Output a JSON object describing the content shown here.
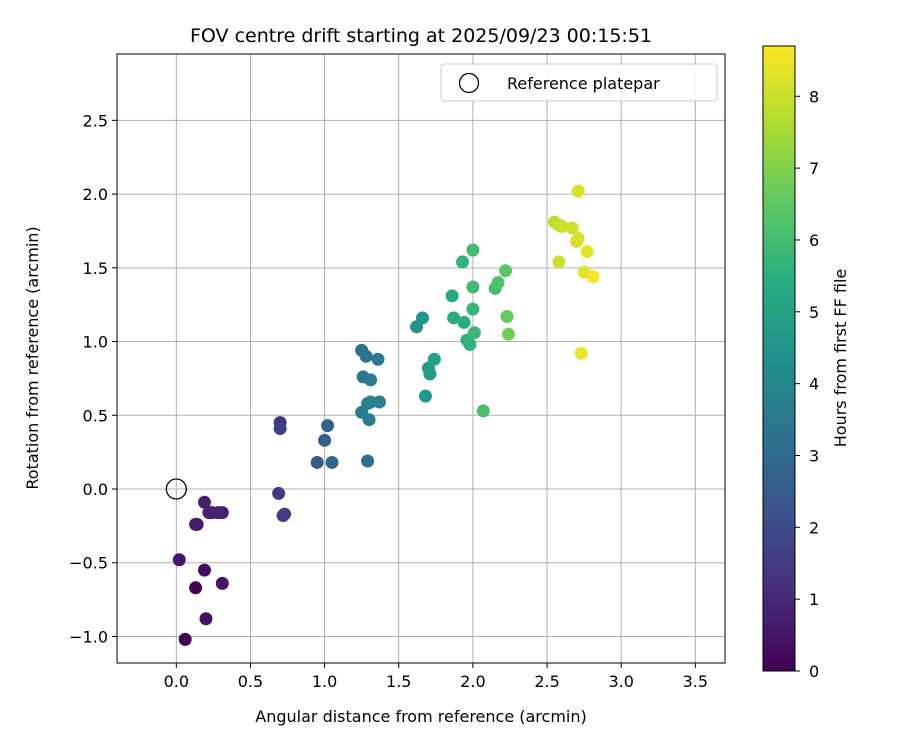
{
  "chart_data": {
    "type": "scatter",
    "title": "FOV centre drift starting at 2025/09/23 00:15:51",
    "xlabel": "Angular distance from reference (arcmin)",
    "ylabel": "Rotation from reference (arcmin)",
    "xlim": [
      -0.4,
      3.7
    ],
    "ylim": [
      -1.18,
      2.95
    ],
    "xticks": [
      0.0,
      0.5,
      1.0,
      1.5,
      2.0,
      2.5,
      3.0,
      3.5
    ],
    "xtick_labels": [
      "0.0",
      "0.5",
      "1.0",
      "1.5",
      "2.0",
      "2.5",
      "3.0",
      "3.5"
    ],
    "yticks": [
      -1.0,
      -0.5,
      0.0,
      0.5,
      1.0,
      1.5,
      2.0,
      2.5
    ],
    "ytick_labels": [
      "−1.0",
      "−0.5",
      "0.0",
      "0.5",
      "1.0",
      "1.5",
      "2.0",
      "2.5"
    ],
    "grid": true,
    "legend": {
      "placement": "upper-right",
      "entries": [
        "Reference platepar"
      ]
    },
    "reference_point": {
      "name": "Reference platepar",
      "x": 0.0,
      "y": 0.0
    },
    "colorbar": {
      "label": "Hours from first FF file",
      "colormap": "viridis",
      "range": [
        0,
        8.7
      ],
      "ticks": [
        0,
        1,
        2,
        3,
        4,
        5,
        6,
        7,
        8
      ],
      "tick_labels": [
        "0",
        "1",
        "2",
        "3",
        "4",
        "5",
        "6",
        "7",
        "8"
      ]
    },
    "series": [
      {
        "x": [
          0.06,
          0.13,
          0.14,
          0.19,
          0.2,
          0.31,
          0.02,
          0.24,
          0.31,
          0.13,
          0.19,
          0.22,
          0.28,
          0.7,
          0.72,
          0.69,
          0.73,
          0.7,
          0.95,
          1.0,
          1.02,
          1.05,
          1.29,
          1.25,
          1.28,
          1.36,
          1.26,
          1.31,
          1.25,
          1.3,
          1.29,
          1.37,
          1.31,
          1.62,
          1.66,
          1.68,
          1.7,
          1.71,
          1.74,
          1.86,
          1.87,
          1.94,
          1.96,
          1.98,
          2.0,
          2.01,
          2.0,
          2.07,
          1.93,
          2.0,
          2.15,
          2.17,
          2.22,
          2.23,
          2.24,
          2.55,
          2.58,
          2.6,
          2.58,
          2.67,
          2.7,
          2.71,
          2.71,
          2.75,
          2.77,
          2.73,
          2.81
        ],
        "y": [
          -1.02,
          -0.67,
          -0.24,
          -0.55,
          -0.88,
          -0.64,
          -0.48,
          -0.16,
          -0.16,
          -0.24,
          -0.09,
          -0.16,
          -0.16,
          0.45,
          -0.18,
          -0.03,
          -0.17,
          0.41,
          0.18,
          0.33,
          0.43,
          0.18,
          0.19,
          0.94,
          0.9,
          0.88,
          0.76,
          0.74,
          0.52,
          0.47,
          0.58,
          0.59,
          0.59,
          1.1,
          1.16,
          0.63,
          0.82,
          0.78,
          0.88,
          1.31,
          1.16,
          1.13,
          1.01,
          0.98,
          1.22,
          1.06,
          1.62,
          0.53,
          1.54,
          1.37,
          1.36,
          1.4,
          1.48,
          1.17,
          1.05,
          1.81,
          1.79,
          1.78,
          1.54,
          1.77,
          1.68,
          1.7,
          2.02,
          1.47,
          1.61,
          0.92,
          1.44
        ],
        "hours": [
          0.0,
          0.1,
          0.2,
          0.3,
          0.4,
          0.5,
          0.55,
          0.6,
          0.65,
          0.7,
          0.75,
          0.8,
          0.85,
          1.3,
          1.4,
          1.5,
          1.55,
          1.6,
          2.5,
          2.6,
          2.7,
          2.8,
          3.2,
          3.3,
          3.4,
          3.5,
          3.55,
          3.6,
          3.65,
          3.7,
          3.75,
          3.8,
          3.9,
          4.4,
          4.5,
          4.6,
          4.7,
          4.8,
          4.9,
          5.2,
          5.3,
          5.4,
          5.5,
          5.6,
          5.7,
          5.8,
          5.9,
          6.1,
          5.6,
          5.9,
          6.0,
          6.2,
          6.4,
          6.6,
          6.8,
          7.8,
          7.9,
          8.0,
          8.0,
          8.1,
          8.1,
          8.2,
          8.2,
          8.3,
          8.4,
          8.5,
          8.6
        ]
      }
    ]
  }
}
